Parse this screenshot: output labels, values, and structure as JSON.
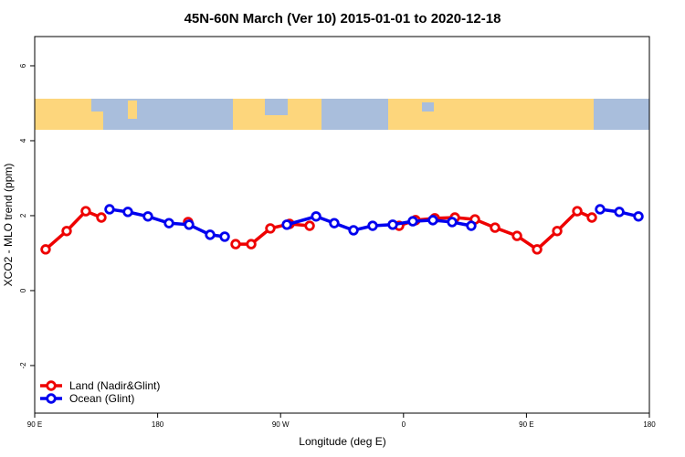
{
  "chart_data": {
    "type": "line",
    "title": "45N-60N March (Ver 10)   2015-01-01 to 2020-12-18",
    "x_label": "Longitude (deg E)",
    "y_label": "XCO2 - MLO trend (ppm)",
    "xlim": [
      90,
      540
    ],
    "ylim": [
      -3.27,
      6.78
    ],
    "xticks": [
      {
        "value": 90,
        "label": "90 E"
      },
      180,
      {
        "value": 270,
        "label": "90 W"
      },
      {
        "value": 360,
        "label": "0"
      },
      {
        "value": 450,
        "label": "90 E"
      },
      {
        "value": 540,
        "label": "180"
      }
    ],
    "yticks": [
      -2,
      0,
      2,
      4,
      6
    ],
    "legend": "bottom-left",
    "series": [
      {
        "name": "Land (Nadir&Glint)",
        "color": "#ee0000",
        "x": [
          98.0,
          113.4,
          127.4,
          138.8,
          170,
          202.3,
          220,
          237.1,
          248.5,
          262.5,
          276.6,
          291.3,
          325,
          356.8,
          368.8,
          382.9,
          397.6,
          412.3,
          427.0,
          443.1,
          457.8,
          472.5,
          487.2,
          497.9
        ],
        "values": [
          1.1,
          1.59,
          2.12,
          1.95,
          null,
          1.83,
          null,
          1.24,
          1.24,
          1.66,
          1.78,
          1.73,
          null,
          1.73,
          1.88,
          1.93,
          1.95,
          1.9,
          1.68,
          1.46,
          1.1,
          1.59,
          2.12,
          1.95
        ]
      },
      {
        "name": "Ocean (Glint)",
        "color": "#0000ee",
        "x": [
          144.8,
          158.2,
          172.9,
          188.3,
          203.0,
          218.4,
          229.1,
          250,
          274.6,
          296.0,
          309.3,
          323.4,
          337.4,
          352.1,
          366.8,
          381.5,
          395.6,
          409.6,
          450,
          503.9,
          518.0,
          532.0
        ],
        "values": [
          2.17,
          2.1,
          1.98,
          1.8,
          1.76,
          1.49,
          1.44,
          null,
          1.76,
          1.98,
          1.8,
          1.61,
          1.73,
          1.76,
          1.85,
          1.88,
          1.83,
          1.73,
          null,
          2.17,
          2.1,
          1.98
        ]
      }
    ]
  }
}
